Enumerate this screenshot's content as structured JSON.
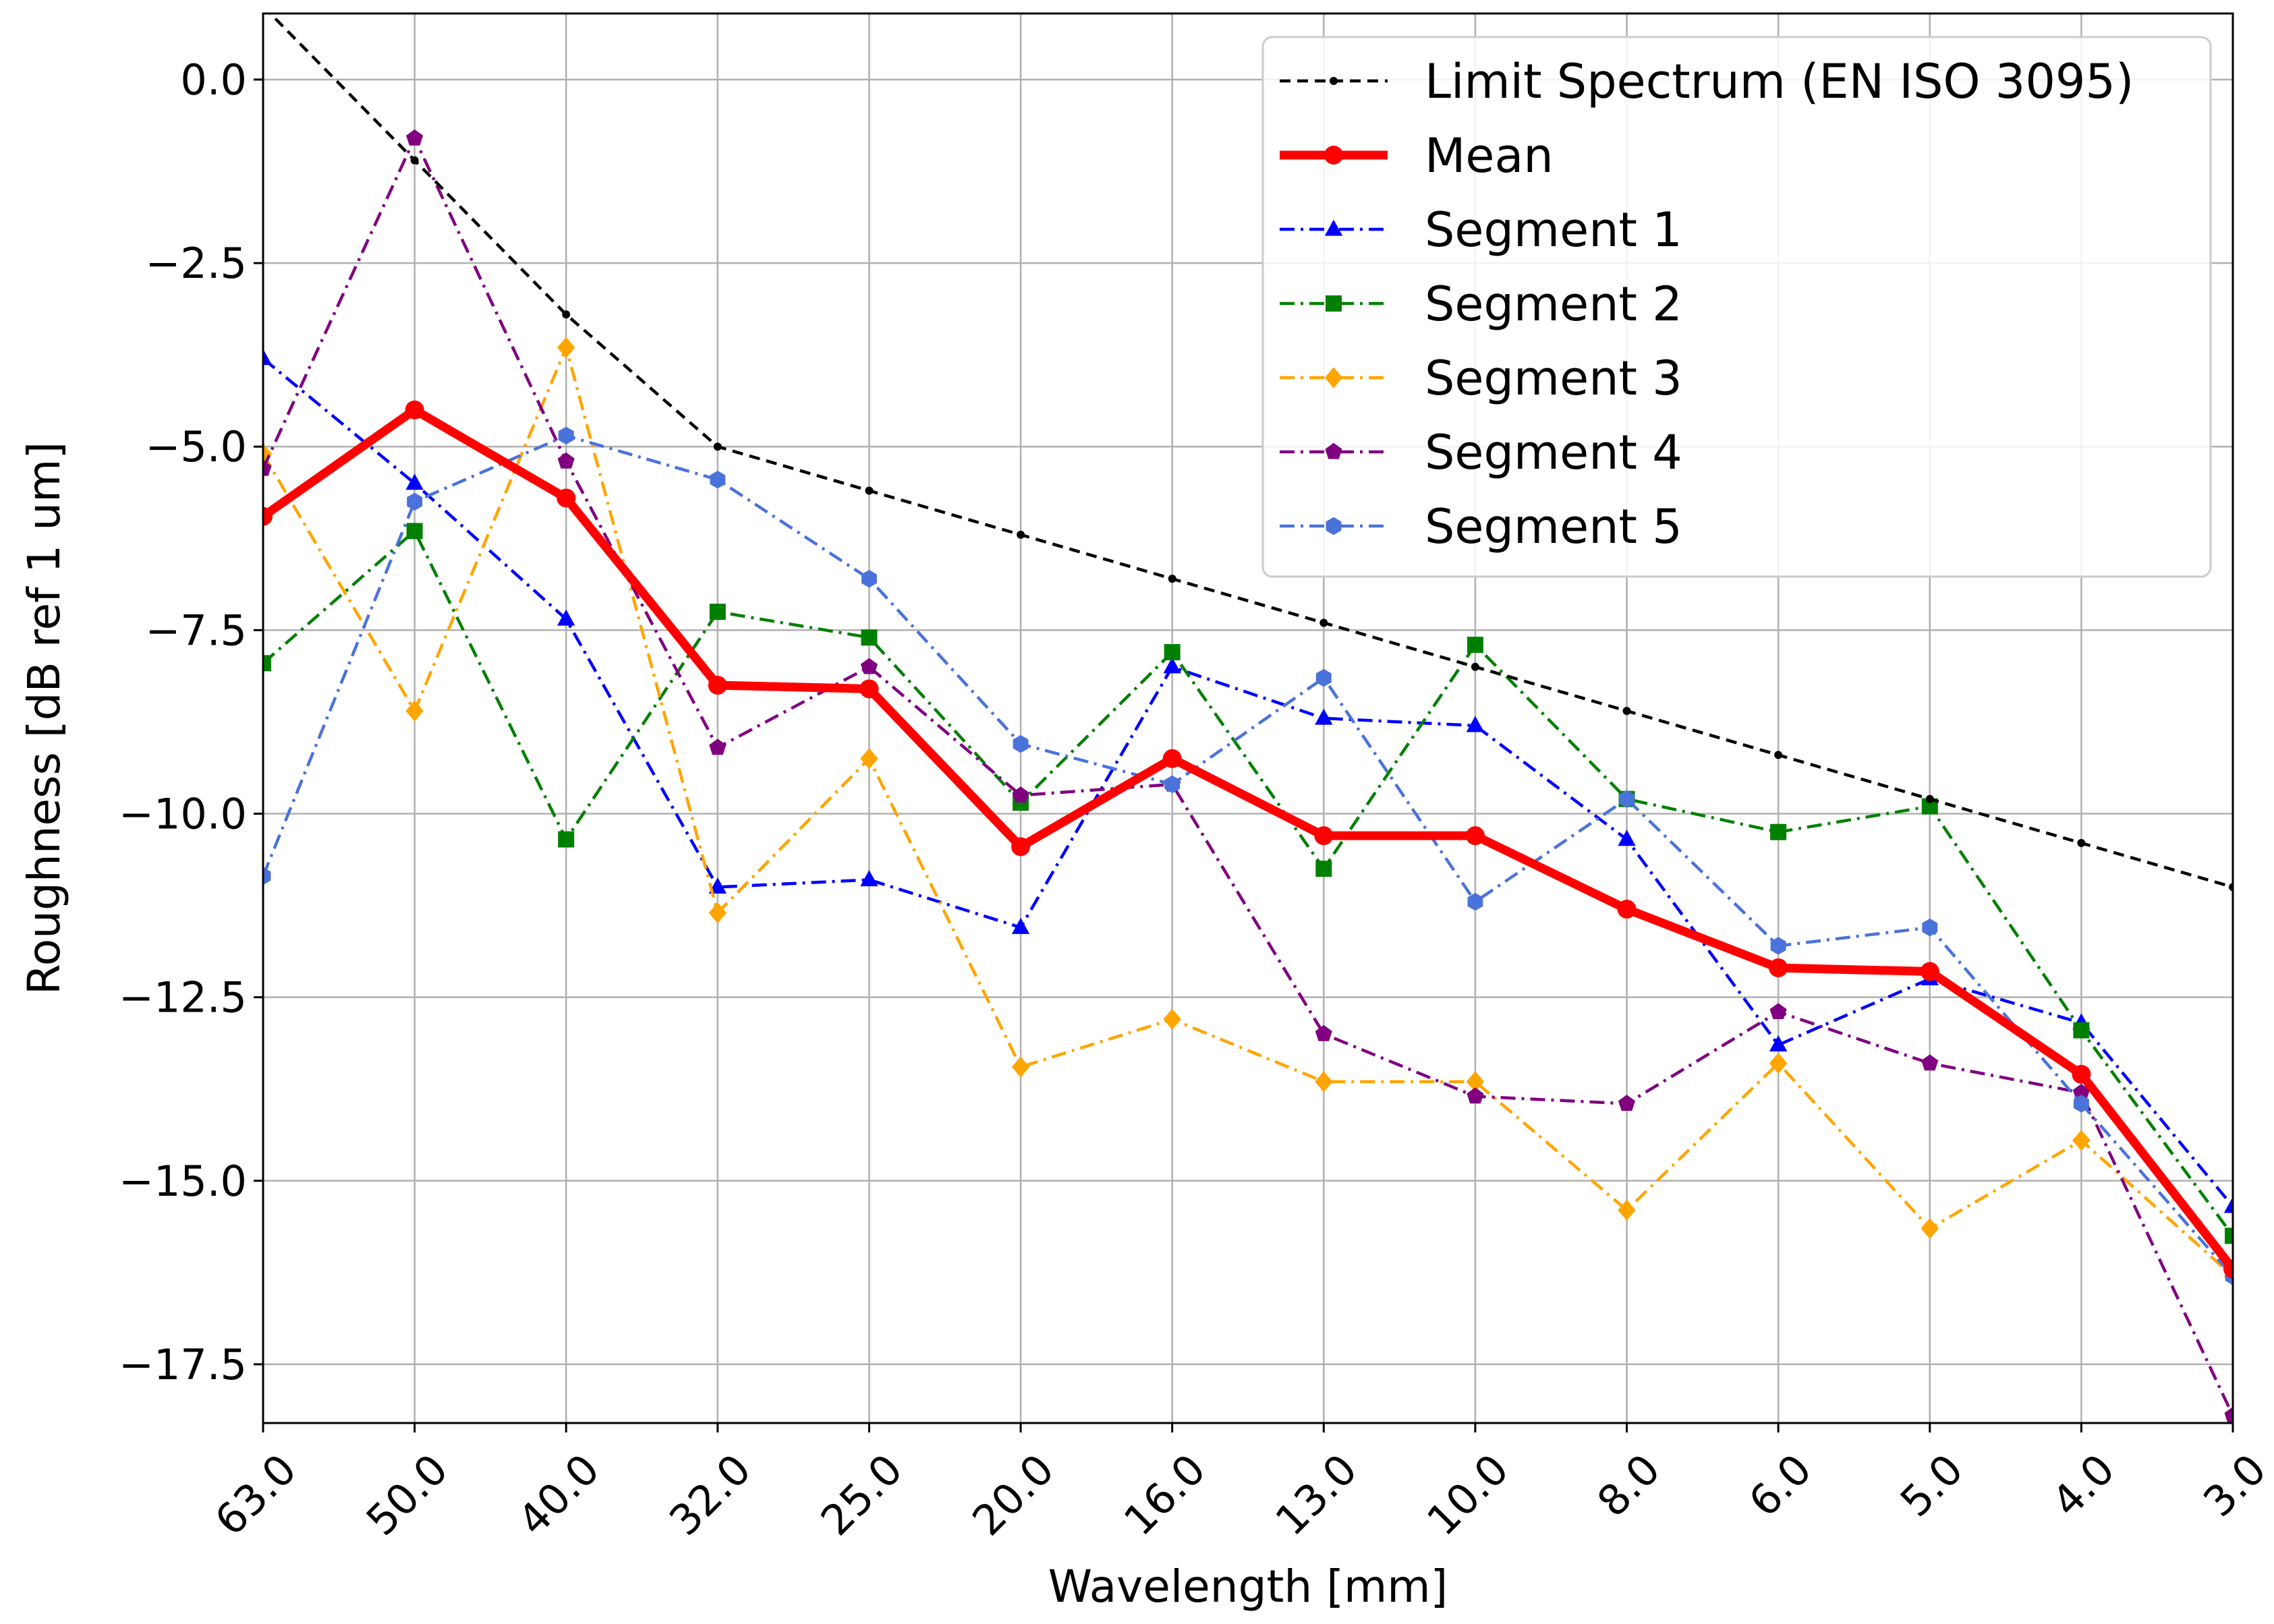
{
  "chart_data": {
    "type": "line",
    "title": "",
    "xlabel": "Wavelength [mm]",
    "ylabel": "Roughness [dB ref 1 um]",
    "categories": [
      "63.0",
      "50.0",
      "40.0",
      "32.0",
      "25.0",
      "20.0",
      "16.0",
      "13.0",
      "10.0",
      "8.0",
      "6.0",
      "5.0",
      "4.0",
      "3.0"
    ],
    "ylim": [
      -18.3,
      0.9
    ],
    "yticks": [
      0.0,
      -2.5,
      -5.0,
      -7.5,
      -10.0,
      -12.5,
      -15.0,
      -17.5
    ],
    "ytick_labels": [
      "0.0",
      "−2.5",
      "−5.0",
      "−7.5",
      "−10.0",
      "−12.5",
      "−15.0",
      "−17.5"
    ],
    "grid": true,
    "legend_position": "top-right",
    "series": [
      {
        "name": "Limit Spectrum (EN ISO 3095)",
        "color": "#000000",
        "dash": "dashed",
        "marker": "dot",
        "width": "thin",
        "values": [
          1.0,
          -1.1,
          -3.2,
          -5.0,
          -5.6,
          -6.2,
          -6.8,
          -7.4,
          -8.0,
          -8.6,
          -9.2,
          -9.8,
          -10.4,
          -11.0
        ]
      },
      {
        "name": "Mean",
        "color": "#ff0000",
        "dash": "solid",
        "marker": "circle",
        "width": "thick",
        "values": [
          -5.95,
          -4.5,
          -5.7,
          -8.25,
          -8.3,
          -10.45,
          -9.25,
          -10.3,
          -10.3,
          -11.3,
          -12.1,
          -12.15,
          -13.55,
          -16.2
        ]
      },
      {
        "name": "Segment 1",
        "color": "#0000ff",
        "dash": "dashdot",
        "marker": "triangle",
        "width": "thin",
        "values": [
          -3.8,
          -5.5,
          -7.35,
          -11.0,
          -10.9,
          -11.55,
          -8.0,
          -8.7,
          -8.8,
          -10.35,
          -13.15,
          -12.25,
          -12.85,
          -15.35
        ]
      },
      {
        "name": "Segment 2",
        "color": "#008000",
        "dash": "dashdot",
        "marker": "square",
        "width": "thin",
        "values": [
          -7.95,
          -6.15,
          -10.35,
          -7.25,
          -7.6,
          -9.85,
          -7.8,
          -10.75,
          -7.7,
          -9.8,
          -10.25,
          -9.9,
          -12.95,
          -15.75
        ]
      },
      {
        "name": "Segment 3",
        "color": "#ffa500",
        "dash": "dashdot",
        "marker": "diamond",
        "width": "thin",
        "values": [
          -5.1,
          -8.6,
          -3.65,
          -11.35,
          -9.25,
          -13.45,
          -12.8,
          -13.65,
          -13.65,
          -15.4,
          -13.4,
          -15.65,
          -14.45,
          -16.3
        ]
      },
      {
        "name": "Segment 4",
        "color": "#800080",
        "dash": "dashdot",
        "marker": "pentagon",
        "width": "thin",
        "values": [
          -5.3,
          -0.8,
          -5.2,
          -9.1,
          -8.0,
          -9.75,
          -9.6,
          -13.0,
          -13.85,
          -13.95,
          -12.7,
          -13.4,
          -13.8,
          -18.2
        ]
      },
      {
        "name": "Segment 5",
        "color": "#4a72db",
        "dash": "dashdot",
        "marker": "hexagon",
        "width": "thin",
        "values": [
          -10.85,
          -5.75,
          -4.85,
          -5.45,
          -6.8,
          -9.05,
          -9.6,
          -8.15,
          -11.2,
          -9.8,
          -11.8,
          -11.55,
          -13.95,
          -16.3
        ]
      }
    ]
  }
}
